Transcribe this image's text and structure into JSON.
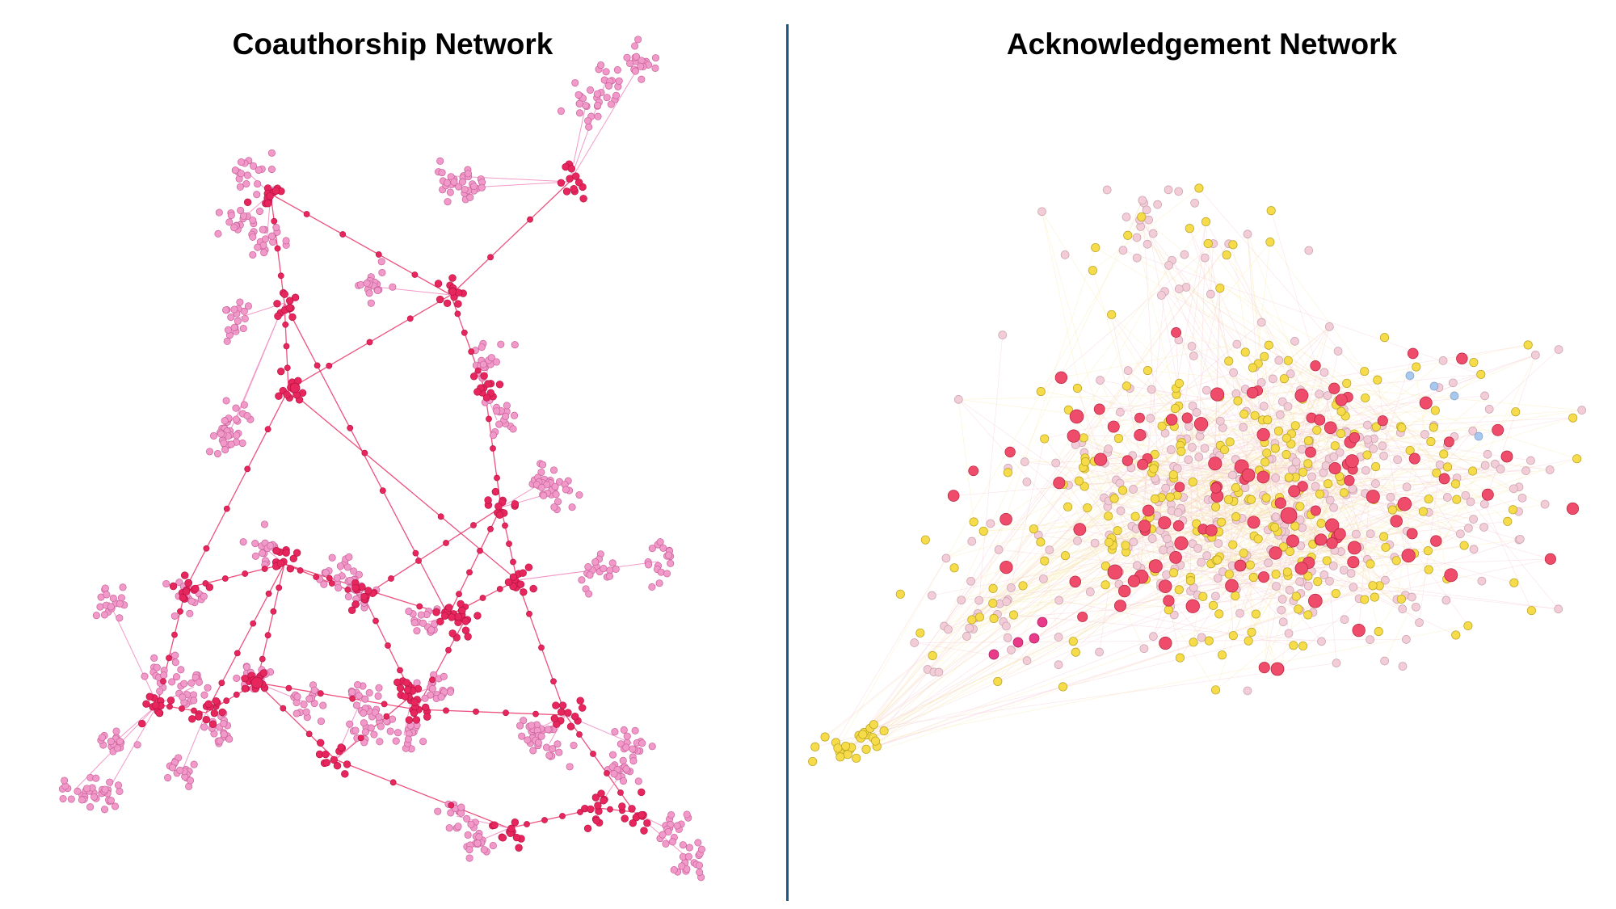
{
  "titles": {
    "left": "Coauthorship Network",
    "right": "Acknowledgement Network"
  },
  "colors": {
    "divider": "#1a5a86",
    "coauth_core": "#e8265e",
    "coauth_leaf": "#f19ac9",
    "coauth_edge": "#e8265e",
    "ack_red": "#ef4b6a",
    "ack_yellow": "#f6dc4a",
    "ack_pink": "#f2cdd8",
    "ack_blue": "#a9c8ee",
    "ack_magenta": "#e83a88"
  }
}
